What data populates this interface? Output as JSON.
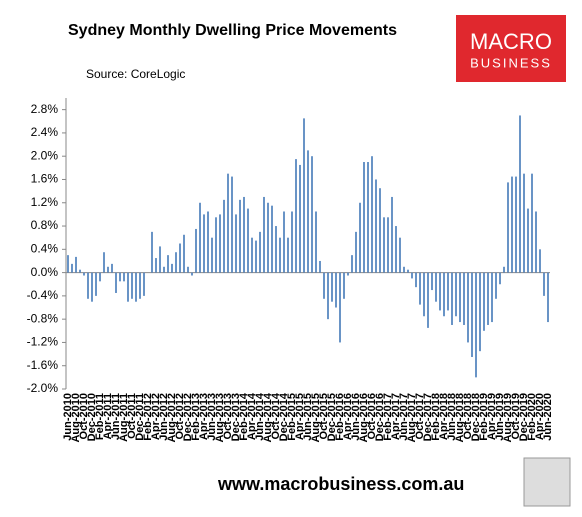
{
  "chart_data": {
    "type": "bar",
    "title": "Sydney Monthly Dwelling Price Movements",
    "source": "Source: CoreLogic",
    "footer": "www.macrobusiness.com.au",
    "logo": [
      "MACRO",
      "BUSINESS"
    ],
    "color": "#4f81bd",
    "categories": [
      "Jun-2010",
      null,
      "Aug-2010",
      null,
      "Oct-2010",
      null,
      "Dec-2010",
      null,
      "Feb-2011",
      null,
      "Apr-2011",
      null,
      "Jun-2011",
      null,
      "Aug-2011",
      null,
      "Oct-2011",
      null,
      "Dec-2011",
      null,
      "Feb-2012",
      null,
      "Apr-2012",
      null,
      "Jun-2012",
      null,
      "Aug-2012",
      null,
      "Oct-2012",
      null,
      "Dec-2012",
      null,
      "Feb-2013",
      null,
      "Apr-2013",
      null,
      "Jun-2013",
      null,
      "Aug-2013",
      null,
      "Oct-2013",
      null,
      "Dec-2013",
      null,
      "Feb-2014",
      null,
      "Apr-2014",
      null,
      "Jun-2014",
      null,
      "Aug-2014",
      null,
      "Oct-2014",
      null,
      "Dec-2014",
      null,
      "Feb-2015",
      null,
      "Apr-2015",
      null,
      "Jun-2015",
      null,
      "Aug-2015",
      null,
      "Oct-2015",
      null,
      "Dec-2015",
      null,
      "Feb-2016",
      null,
      "Apr-2016",
      null,
      "Jun-2016",
      null,
      "Aug-2016",
      null,
      "Oct-2016",
      null,
      "Dec-2016",
      null,
      "Feb-2017",
      null,
      "Apr-2017",
      null,
      "Jun-2017",
      null,
      "Aug-2017",
      null,
      "Oct-2017",
      null,
      "Dec-2017",
      null,
      "Feb-2018",
      null,
      "Apr-2018",
      null,
      "Jun-2018",
      null,
      "Aug-2018",
      null,
      "Oct-2018",
      null,
      "Dec-2018",
      null,
      "Feb-2019",
      null,
      "Apr-2019",
      null,
      "Jun-2019",
      null,
      "Aug-2019",
      null,
      "Oct-2019",
      null,
      "Dec-2019",
      null,
      "Feb-2020",
      null,
      "Apr-2020",
      null,
      "Jun-2020"
    ],
    "values": [
      0.3,
      0.15,
      0.27,
      0.05,
      -0.05,
      -0.45,
      -0.5,
      -0.4,
      -0.15,
      0.35,
      0.1,
      0.15,
      -0.35,
      -0.15,
      -0.15,
      -0.5,
      -0.45,
      -0.5,
      -0.45,
      -0.4,
      0.0,
      0.7,
      0.25,
      0.45,
      0.1,
      0.3,
      0.15,
      0.35,
      0.5,
      0.65,
      0.1,
      -0.05,
      0.75,
      1.2,
      1.0,
      1.05,
      0.6,
      0.95,
      1.0,
      1.25,
      1.7,
      1.65,
      1.0,
      1.25,
      1.3,
      1.1,
      0.6,
      0.55,
      0.7,
      1.3,
      1.2,
      1.15,
      0.8,
      0.6,
      1.05,
      0.6,
      1.05,
      1.95,
      1.85,
      2.65,
      2.1,
      2.0,
      1.05,
      0.2,
      -0.45,
      -0.8,
      -0.5,
      -0.6,
      -1.2,
      -0.45,
      -0.05,
      0.3,
      0.7,
      1.2,
      1.9,
      1.9,
      2.0,
      1.6,
      1.45,
      0.95,
      0.95,
      1.3,
      0.8,
      0.6,
      0.1,
      0.05,
      -0.1,
      -0.25,
      -0.55,
      -0.75,
      -0.95,
      -0.3,
      -0.5,
      -0.65,
      -0.75,
      -0.65,
      -0.9,
      -0.75,
      -0.85,
      -0.9,
      -1.2,
      -1.45,
      -1.8,
      -1.35,
      -1.0,
      -0.9,
      -0.85,
      -0.45,
      -0.2,
      0.1,
      1.55,
      1.65,
      1.65,
      2.7,
      1.7,
      1.1,
      1.7,
      1.05,
      0.4,
      -0.4,
      -0.85
    ],
    "ylim": [
      -2.0,
      3.0
    ],
    "yticks": [
      {
        "value": -2.0,
        "label": "-2.0%"
      },
      {
        "value": -1.6,
        "label": "-1.6%"
      },
      {
        "value": -1.2,
        "label": "-1.2%"
      },
      {
        "value": -0.8,
        "label": "-0.8%"
      },
      {
        "value": -0.4,
        "label": "-0.4%"
      },
      {
        "value": 0.0,
        "label": "0.0%"
      },
      {
        "value": 0.4,
        "label": "0.4%"
      },
      {
        "value": 0.8,
        "label": "0.8%"
      },
      {
        "value": 1.2,
        "label": "1.2%"
      },
      {
        "value": 1.6,
        "label": "1.6%"
      },
      {
        "value": 2.0,
        "label": "2.0%"
      },
      {
        "value": 2.4,
        "label": "2.4%"
      },
      {
        "value": 2.8,
        "label": "2.8%"
      }
    ],
    "grid": false
  }
}
